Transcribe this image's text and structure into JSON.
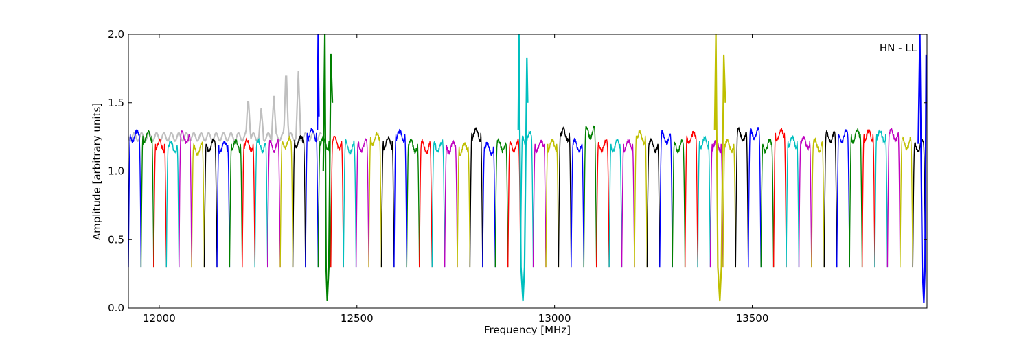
{
  "chart_data": {
    "type": "line",
    "title": "",
    "annotation": "HN - LL",
    "xlabel": "Frequency [MHz]",
    "ylabel": "Amplitude [arbitrary units]",
    "xlim": [
      11922,
      13942
    ],
    "ylim": [
      0,
      2.0
    ],
    "xticks": [
      12000,
      12500,
      13000,
      13500
    ],
    "xtick_labels": [
      "12000",
      "12500",
      "13000",
      "13500"
    ],
    "yticks": [
      0.0,
      0.5,
      1.0,
      1.5,
      2.0
    ],
    "ytick_labels": [
      "0.0",
      "0.5",
      "1.0",
      "1.5",
      "2.0"
    ],
    "grid": false,
    "channel_color_cycle": [
      "#0000ff",
      "#008000",
      "#ff0000",
      "#00bfbf",
      "#bf00bf",
      "#bfbf00",
      "#000000"
    ],
    "channel_start_mhz": 11922,
    "channel_width_mhz": 32,
    "channel_count": 63,
    "channel_floor": 0.3,
    "channel_levels": [
      1.27,
      1.26,
      1.2,
      1.19,
      1.26,
      1.18,
      1.2,
      1.19,
      1.2,
      1.2,
      1.2,
      1.2,
      1.22,
      1.23,
      1.28,
      1.22,
      1.22,
      1.19,
      1.2,
      1.25,
      1.22,
      1.27,
      1.2,
      1.19,
      1.2,
      1.19,
      1.18,
      1.28,
      1.18,
      1.2,
      1.2,
      1.26,
      1.2,
      1.2,
      1.28,
      1.2,
      1.3,
      1.2,
      1.2,
      1.2,
      1.26,
      1.2,
      1.26,
      1.2,
      1.26,
      1.22,
      1.2,
      1.2,
      1.28,
      1.29,
      1.2,
      1.28,
      1.22,
      1.22,
      1.2,
      1.27,
      1.27,
      1.27,
      1.27,
      1.27,
      1.28,
      1.22,
      1.2
    ],
    "reference_series": {
      "name": "",
      "color": "#bfbfbf",
      "x_range": [
        11922,
        12410
      ],
      "base_level": 1.25,
      "peaks": [
        {
          "x": 12225,
          "y": 1.56
        },
        {
          "x": 12258,
          "y": 1.46
        },
        {
          "x": 12290,
          "y": 1.55
        },
        {
          "x": 12321,
          "y": 1.78
        },
        {
          "x": 12352,
          "y": 1.73
        }
      ]
    },
    "rfi_spikes": [
      {
        "color": "#0000ff",
        "points": [
          [
            12400,
            1.3
          ],
          [
            12402,
            2.0
          ],
          [
            12404,
            1.4
          ]
        ]
      },
      {
        "color": "#008000",
        "points": [
          [
            12415,
            1.0
          ],
          [
            12419,
            2.0
          ],
          [
            12422,
            0.3
          ],
          [
            12425,
            0.05
          ],
          [
            12429,
            0.3
          ],
          [
            12434,
            1.86
          ],
          [
            12438,
            1.5
          ]
        ]
      },
      {
        "color": "#00bfbf",
        "points": [
          [
            12908,
            1.3
          ],
          [
            12910,
            2.0
          ],
          [
            12915,
            0.3
          ],
          [
            12920,
            0.05
          ],
          [
            12924,
            0.3
          ],
          [
            12930,
            1.83
          ],
          [
            12932,
            1.5
          ]
        ]
      },
      {
        "color": "#bfbf00",
        "points": [
          [
            13405,
            1.3
          ],
          [
            13408,
            2.0
          ],
          [
            13413,
            0.3
          ],
          [
            13418,
            0.05
          ],
          [
            13422,
            0.3
          ],
          [
            13428,
            1.85
          ],
          [
            13432,
            1.5
          ]
        ]
      },
      {
        "color": "#0000ff",
        "points": [
          [
            13920,
            1.2
          ],
          [
            13924,
            2.0
          ],
          [
            13930,
            0.3
          ],
          [
            13934,
            0.04
          ],
          [
            13937,
            0.3
          ],
          [
            13940,
            1.85
          ]
        ]
      }
    ]
  }
}
